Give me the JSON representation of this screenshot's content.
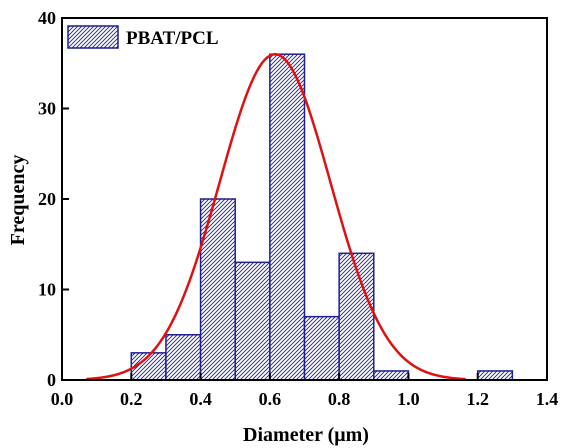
{
  "chart_data": {
    "type": "bar",
    "series": [
      {
        "name": "PBAT/PCL",
        "bins": [
          {
            "x0": 0.2,
            "x1": 0.3,
            "value": 3
          },
          {
            "x0": 0.3,
            "x1": 0.4,
            "value": 5
          },
          {
            "x0": 0.4,
            "x1": 0.5,
            "value": 20
          },
          {
            "x0": 0.5,
            "x1": 0.6,
            "value": 13
          },
          {
            "x0": 0.6,
            "x1": 0.7,
            "value": 36
          },
          {
            "x0": 0.7,
            "x1": 0.8,
            "value": 7
          },
          {
            "x0": 0.8,
            "x1": 0.9,
            "value": 14
          },
          {
            "x0": 0.9,
            "x1": 1.0,
            "value": 1
          },
          {
            "x0": 1.2,
            "x1": 1.3,
            "value": 1
          }
        ],
        "color": "#1f1f8f"
      }
    ],
    "fit_curve": {
      "type": "gaussian",
      "color": "#e01010",
      "x_range": [
        0.07,
        1.165
      ],
      "peak_x": 0.615,
      "peak_y": 36,
      "sigma": 0.16
    },
    "xlabel": "Diameter (μm)",
    "ylabel": "Frequency",
    "xlim": [
      0.0,
      1.4
    ],
    "ylim": [
      0,
      40
    ],
    "xticks": [
      "0.0",
      "0.2",
      "0.4",
      "0.6",
      "0.8",
      "1.0",
      "1.2",
      "1.4"
    ],
    "yticks": [
      "0",
      "10",
      "20",
      "30",
      "40"
    ],
    "legend": {
      "placement": "top-left",
      "label": "PBAT/PCL"
    },
    "grid": false
  }
}
